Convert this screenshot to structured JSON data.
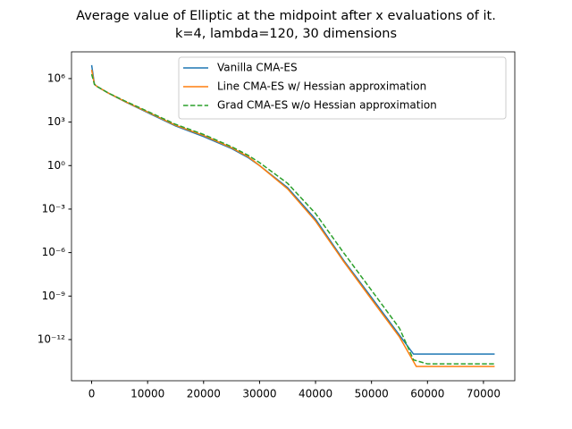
{
  "chart_data": {
    "type": "line",
    "title": "Average value of Elliptic at the midpoint after x evaluations of it.",
    "subtitle": "k=4, lambda=120, 30 dimensions",
    "log_y": true,
    "legend": "upper right",
    "xlim": [
      -3600,
      75600
    ],
    "xticks": [
      0,
      10000,
      20000,
      30000,
      40000,
      50000,
      60000,
      70000
    ],
    "ylim": [
      1.45e-15,
      70000000.0
    ],
    "yticks": [
      {
        "value": 1000000.0,
        "label": "10⁶"
      },
      {
        "value": 1000.0,
        "label": "10³"
      },
      {
        "value": 1,
        "label": "10⁰"
      },
      {
        "value": 0.001,
        "label": "10⁻³"
      },
      {
        "value": 1e-06,
        "label": "10⁻⁶"
      },
      {
        "value": 1e-09,
        "label": "10⁻⁹"
      },
      {
        "value": 1e-12,
        "label": "10⁻¹²"
      }
    ],
    "series": [
      {
        "name": "Vanilla CMA-ES",
        "color": "#1f77b4",
        "dash": "solid",
        "x": [
          0,
          500,
          1000,
          3000,
          6000,
          10000,
          15000,
          20000,
          25000,
          28000,
          30000,
          35000,
          40000,
          45000,
          50000,
          55000,
          57500,
          72000
        ],
        "values": [
          8500000.0,
          400000.0,
          280000.0,
          100000.0,
          25000.0,
          4500.0,
          540,
          100,
          15,
          3.5,
          1,
          0.03,
          0.0002,
          3e-07,
          8e-10,
          2e-12,
          1e-13,
          1e-13
        ]
      },
      {
        "name": "Line CMA-ES w/ Hessian approximation",
        "color": "#ff7f0e",
        "dash": "solid",
        "x": [
          0,
          500,
          1000,
          3000,
          6000,
          10000,
          15000,
          20000,
          25000,
          28000,
          30000,
          35000,
          40000,
          45000,
          50000,
          55000,
          58000,
          72000
        ],
        "values": [
          4000000.0,
          400000.0,
          280000.0,
          100000.0,
          26000.0,
          5000.0,
          600,
          120,
          17,
          4,
          1,
          0.025,
          0.00015,
          2.5e-07,
          6e-10,
          1.5e-12,
          1.4e-14,
          1.4e-14
        ]
      },
      {
        "name": "Grad CMA-ES w/o Hessian approximation",
        "color": "#2ca02c",
        "dash": "dashed",
        "x": [
          0,
          500,
          1000,
          3000,
          6000,
          10000,
          15000,
          20000,
          25000,
          28000,
          30000,
          35000,
          40000,
          45000,
          50000,
          55000,
          57500,
          60000,
          72000
        ],
        "values": [
          2000000.0,
          400000.0,
          280000.0,
          100000.0,
          28000.0,
          5500.0,
          700,
          140,
          20,
          5,
          1.6,
          0.06,
          0.0005,
          1e-06,
          2.5e-09,
          6e-12,
          4e-14,
          2.1e-14,
          2.1e-14
        ]
      }
    ]
  }
}
